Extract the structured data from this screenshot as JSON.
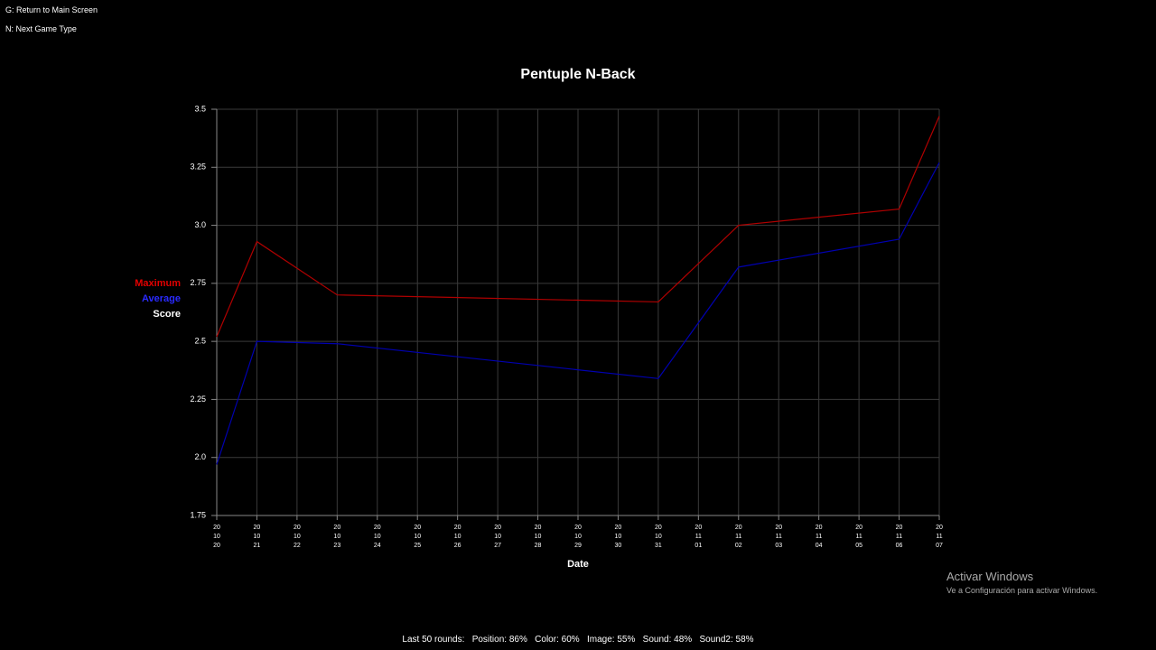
{
  "controls": [
    "G: Return to Main Screen",
    "N: Next Game Type"
  ],
  "chart_data": {
    "type": "line",
    "title": "Pentuple N-Back",
    "xlabel": "Date",
    "ylabel": "Score",
    "categories": [
      "20\n10\n20",
      "20\n10\n21",
      "20\n10\n22",
      "20\n10\n23",
      "20\n10\n24",
      "20\n10\n25",
      "20\n10\n26",
      "20\n10\n27",
      "20\n10\n28",
      "20\n10\n29",
      "20\n10\n30",
      "20\n10\n31",
      "20\n11\n01",
      "20\n11\n02",
      "20\n11\n03",
      "20\n11\n04",
      "20\n11\n05",
      "20\n11\n06",
      "20\n11\n07"
    ],
    "series": [
      {
        "name": "Maximum",
        "color": "#b00000",
        "label_color": "#e00000",
        "x": [
          "20\n10\n20",
          "20\n10\n21",
          "20\n10\n23",
          "20\n10\n31",
          "20\n11\n02",
          "20\n11\n06",
          "20\n11\n07"
        ],
        "values": [
          2.52,
          2.93,
          2.7,
          2.67,
          3.0,
          3.07,
          3.47
        ]
      },
      {
        "name": "Average",
        "color": "#0000b0",
        "label_color": "#2a2aff",
        "x": [
          "20\n10\n20",
          "20\n10\n21",
          "20\n10\n23",
          "20\n10\n31",
          "20\n11\n02",
          "20\n11\n06",
          "20\n11\n07"
        ],
        "values": [
          1.97,
          2.5,
          2.49,
          2.34,
          2.82,
          2.94,
          3.27
        ]
      }
    ],
    "ylim": [
      1.75,
      3.5
    ],
    "yticks": [
      1.75,
      {
        "value": 2,
        "label": "2.0"
      },
      2.25,
      2.5,
      2.75,
      {
        "value": 3,
        "label": "3.0"
      },
      3.25,
      3.5
    ],
    "grid": true
  },
  "footer": "Last 50 rounds:   Position: 86%   Color: 60%   Image: 55%   Sound: 48%   Sound2: 58%",
  "watermark": {
    "title": "Activar Windows",
    "text": "Ve a Configuración para activar Windows."
  }
}
